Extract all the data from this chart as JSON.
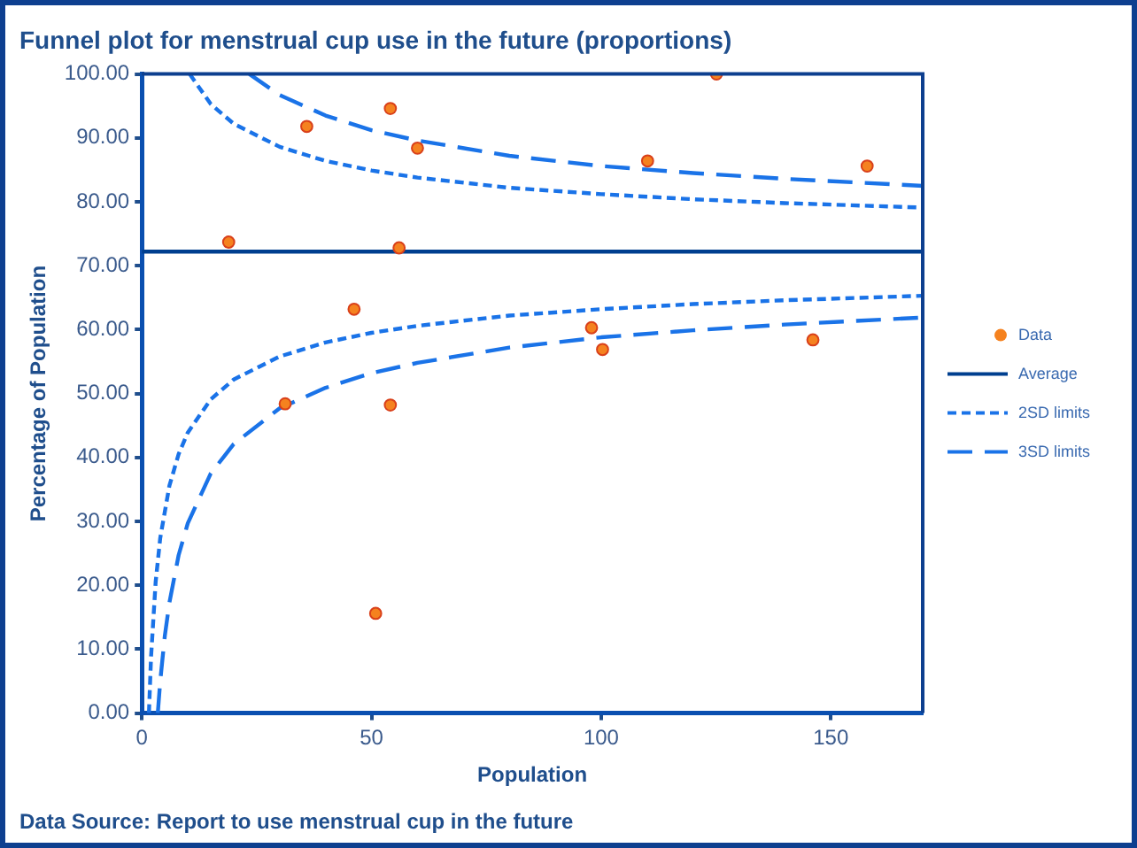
{
  "chart_data": {
    "type": "scatter",
    "title": "Funnel plot for menstrual cup use in the future (proportions)",
    "xlabel": "Population",
    "ylabel": "Percentage of Population",
    "annotations": [
      "Data Source: Report to use menstrual cup in the future"
    ],
    "xlim": [
      0,
      170
    ],
    "xticks": [
      0,
      50,
      100,
      150
    ],
    "ylim": [
      0,
      100
    ],
    "yticks": [
      {
        "value": 0,
        "label": "0.00"
      },
      {
        "value": 10,
        "label": "10.00"
      },
      {
        "value": 20,
        "label": "20.00"
      },
      {
        "value": 30,
        "label": "30.00"
      },
      {
        "value": 40,
        "label": "40.00"
      },
      {
        "value": 50,
        "label": "50.00"
      },
      {
        "value": 60,
        "label": "60.00"
      },
      {
        "value": 70,
        "label": "70.00"
      },
      {
        "value": 80,
        "label": "80.00"
      },
      {
        "value": 90,
        "label": "90.00"
      },
      {
        "value": 100,
        "label": "100.00"
      }
    ],
    "grid": false,
    "legend": "right",
    "series": [
      {
        "name": "Data",
        "type": "scatter",
        "marker": "circle",
        "color": "#f5821f",
        "x": [
          18.9,
          35.9,
          54.1,
          60,
          56,
          125.1,
          110.1,
          157.9,
          46.2,
          31.2,
          54.1,
          50.9,
          97.9,
          100.3,
          146.1
        ],
        "values": [
          73.7,
          91.8,
          94.6,
          88.4,
          72.8,
          100,
          86.4,
          85.6,
          63.2,
          48.4,
          48.2,
          15.6,
          60.3,
          56.9,
          58.4
        ]
      },
      {
        "name": "Average",
        "type": "line",
        "marker": "none",
        "line_style": "solid",
        "color": "#003f8f",
        "x": [
          0,
          170
        ],
        "values": [
          72.2,
          72.2
        ]
      },
      {
        "name": "2SD limits",
        "type": "line",
        "marker": "none",
        "line_style": "dotted",
        "color": "#1a73e8",
        "x": [
          10.4,
          15,
          20,
          30,
          40,
          50,
          60,
          80,
          100,
          120,
          140,
          170,
          null,
          1.54,
          2,
          3,
          4,
          6,
          8,
          10,
          15,
          20,
          30,
          40,
          50,
          60,
          80,
          100,
          120,
          140,
          170
        ],
        "values": [
          100,
          95.3,
          92.2,
          88.6,
          86.4,
          84.9,
          83.8,
          82.2,
          81.2,
          80.4,
          79.8,
          79.1,
          null,
          0,
          8.8,
          20.5,
          27.4,
          35.6,
          40.5,
          43.9,
          49.1,
          52.2,
          55.8,
          58,
          59.5,
          60.6,
          62.2,
          63.2,
          64,
          64.6,
          65.3
        ]
      },
      {
        "name": "3SD limits",
        "type": "line",
        "marker": "none",
        "line_style": "dashed",
        "color": "#1a73e8",
        "x": [
          23.4,
          30,
          40,
          50,
          60,
          80,
          100,
          120,
          140,
          170,
          null,
          3.47,
          4,
          5,
          6,
          8,
          10,
          15,
          20,
          30,
          40,
          50,
          60,
          80,
          100,
          120,
          140,
          170
        ],
        "values": [
          100,
          96.7,
          93.5,
          91.2,
          89.6,
          87.2,
          85.6,
          84.5,
          83.6,
          82.5,
          null,
          0,
          5,
          12.1,
          17.3,
          24.7,
          29.7,
          37.5,
          42.1,
          47.7,
          50.9,
          53.2,
          54.8,
          57.2,
          58.8,
          59.9,
          60.8,
          61.9
        ]
      }
    ]
  }
}
